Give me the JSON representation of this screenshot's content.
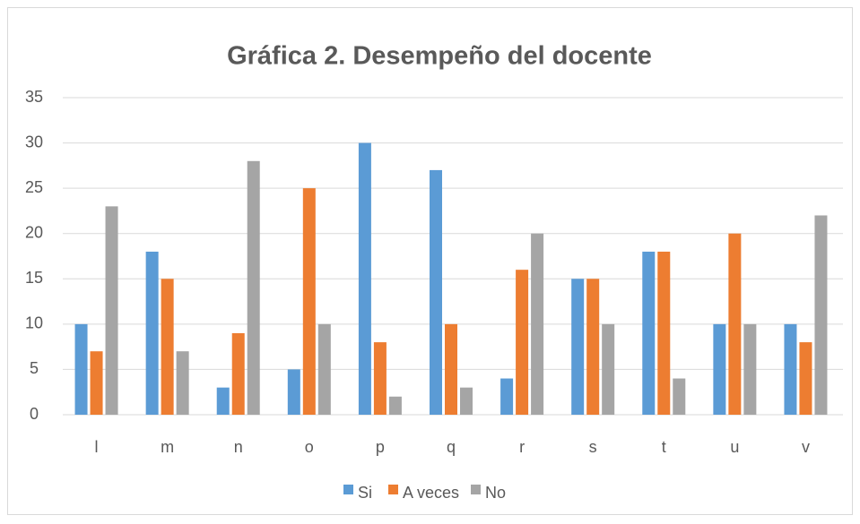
{
  "chart_data": {
    "type": "bar",
    "title": "Gráfica 2. Desempeño del docente",
    "categories": [
      "l",
      "m",
      "n",
      "o",
      "p",
      "q",
      "r",
      "s",
      "t",
      "u",
      "v"
    ],
    "series": [
      {
        "name": "Si",
        "color": "#5b9bd5",
        "values": [
          10,
          18,
          3,
          5,
          30,
          27,
          4,
          15,
          18,
          10,
          10
        ]
      },
      {
        "name": "A veces",
        "color": "#ed7d31",
        "values": [
          7,
          15,
          9,
          25,
          8,
          10,
          16,
          15,
          18,
          20,
          8
        ]
      },
      {
        "name": "No",
        "color": "#a5a5a5",
        "values": [
          23,
          7,
          28,
          10,
          2,
          3,
          20,
          10,
          4,
          10,
          22
        ]
      }
    ],
    "ylim": [
      0,
      35
    ],
    "yticks": [
      0,
      5,
      10,
      15,
      20,
      25,
      30,
      35
    ],
    "grid": true,
    "legend": "bottom"
  }
}
